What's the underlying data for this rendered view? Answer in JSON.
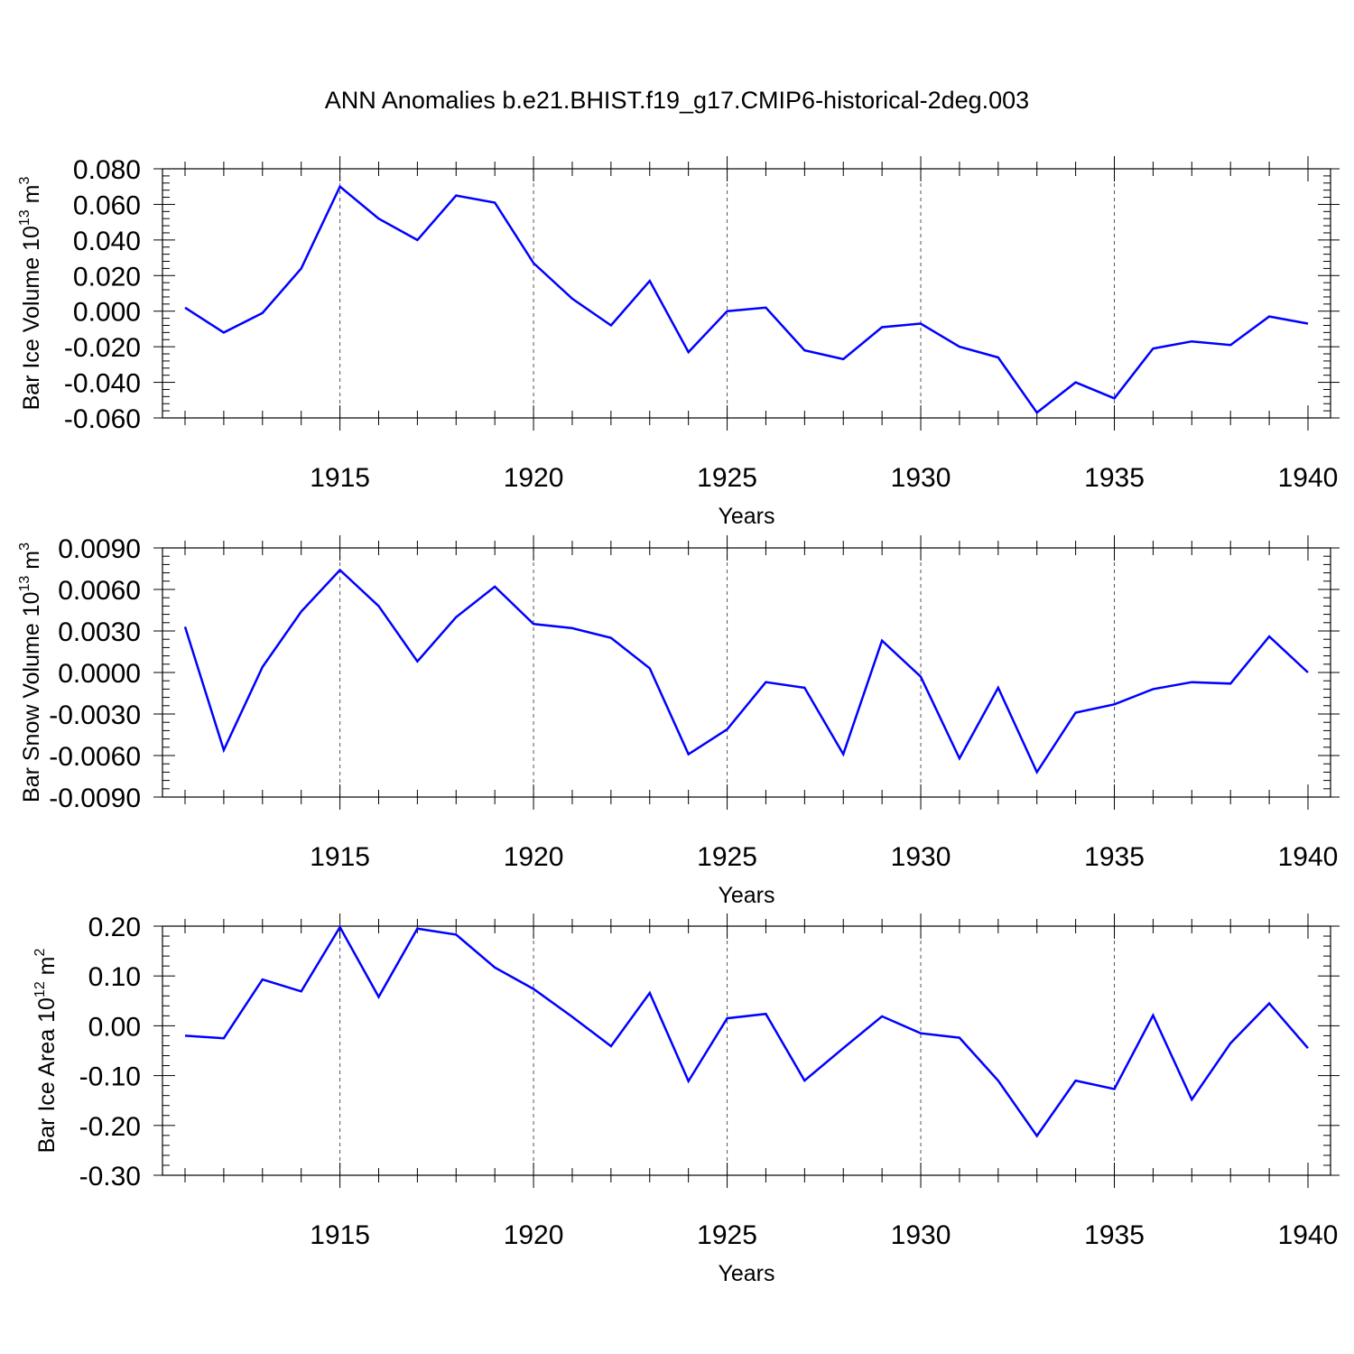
{
  "title": "ANN Anomalies b.e21.BHIST.f19_g17.CMIP6-historical-2deg.003",
  "colors": {
    "series": "#0000ff",
    "axis": "#000000",
    "grid": "#555555"
  },
  "chart_data": [
    {
      "type": "line",
      "ylabel": "Bar Ice Volume 10",
      "ylabel_exp": "13",
      "ylabel_unit": "m",
      "ylabel_unit_exp": "3",
      "xlabel": "Years",
      "xlim": [
        1911,
        1940
      ],
      "ylim": [
        -0.06,
        0.08
      ],
      "yticks": [
        -0.06,
        -0.04,
        -0.02,
        0.0,
        0.02,
        0.04,
        0.06,
        0.08
      ],
      "ytick_labels": [
        "-0.060",
        "-0.040",
        "-0.020",
        "0.000",
        "0.020",
        "0.040",
        "0.060",
        "0.080"
      ],
      "xticks": [
        1915,
        1920,
        1925,
        1930,
        1935,
        1940
      ],
      "xtick_labels": [
        "1915",
        "1920",
        "1925",
        "1930",
        "1935",
        "1940"
      ],
      "grid": "vertical dashed at major x ticks",
      "x": [
        1911,
        1912,
        1913,
        1914,
        1915,
        1916,
        1917,
        1918,
        1919,
        1920,
        1921,
        1922,
        1923,
        1924,
        1925,
        1926,
        1927,
        1928,
        1929,
        1930,
        1931,
        1932,
        1933,
        1934,
        1935,
        1936,
        1937,
        1938,
        1939,
        1940
      ],
      "y": [
        0.002,
        -0.012,
        -0.001,
        0.024,
        0.07,
        0.052,
        0.04,
        0.065,
        0.061,
        0.027,
        0.007,
        -0.008,
        0.017,
        -0.023,
        0.0,
        0.002,
        -0.022,
        -0.027,
        -0.009,
        -0.007,
        -0.02,
        -0.026,
        -0.057,
        -0.04,
        -0.049,
        -0.021,
        -0.017,
        -0.019,
        -0.003,
        -0.007
      ]
    },
    {
      "type": "line",
      "ylabel": "Bar Snow Volume 10",
      "ylabel_exp": "13",
      "ylabel_unit": "m",
      "ylabel_unit_exp": "3",
      "xlabel": "Years",
      "xlim": [
        1911,
        1940
      ],
      "ylim": [
        -0.009,
        0.009
      ],
      "yticks": [
        -0.009,
        -0.006,
        -0.003,
        0.0,
        0.003,
        0.006,
        0.009
      ],
      "ytick_labels": [
        "-0.0090",
        "-0.0060",
        "-0.0030",
        "0.0000",
        "0.0030",
        "0.0060",
        "0.0090"
      ],
      "xticks": [
        1915,
        1920,
        1925,
        1930,
        1935,
        1940
      ],
      "xtick_labels": [
        "1915",
        "1920",
        "1925",
        "1930",
        "1935",
        "1940"
      ],
      "grid": "vertical dashed at major x ticks",
      "x": [
        1911,
        1912,
        1913,
        1914,
        1915,
        1916,
        1917,
        1918,
        1919,
        1920,
        1921,
        1922,
        1923,
        1924,
        1925,
        1926,
        1927,
        1928,
        1929,
        1930,
        1931,
        1932,
        1933,
        1934,
        1935,
        1936,
        1937,
        1938,
        1939,
        1940
      ],
      "y": [
        0.0033,
        -0.0056,
        0.0004,
        0.0044,
        0.0074,
        0.0048,
        0.0008,
        0.004,
        0.0062,
        0.0035,
        0.0032,
        0.0025,
        0.0003,
        -0.0059,
        -0.0041,
        -0.0007,
        -0.0011,
        -0.0059,
        0.0023,
        -0.0003,
        -0.0062,
        -0.0011,
        -0.0072,
        -0.0029,
        -0.0023,
        -0.0012,
        -0.0007,
        -0.0008,
        0.0026,
        0.0
      ]
    },
    {
      "type": "line",
      "ylabel": "Bar Ice Area 10",
      "ylabel_exp": "12",
      "ylabel_unit": "m",
      "ylabel_unit_exp": "2",
      "xlabel": "Years",
      "xlim": [
        1911,
        1940
      ],
      "ylim": [
        -0.3,
        0.2
      ],
      "yticks": [
        -0.3,
        -0.2,
        -0.1,
        0.0,
        0.1,
        0.2
      ],
      "ytick_labels": [
        "-0.30",
        "-0.20",
        "-0.10",
        "0.00",
        "0.10",
        "0.20"
      ],
      "xticks": [
        1915,
        1920,
        1925,
        1930,
        1935,
        1940
      ],
      "xtick_labels": [
        "1915",
        "1920",
        "1925",
        "1930",
        "1935",
        "1940"
      ],
      "grid": "vertical dashed at major x ticks",
      "x": [
        1911,
        1912,
        1913,
        1914,
        1915,
        1916,
        1917,
        1918,
        1919,
        1920,
        1921,
        1922,
        1923,
        1924,
        1925,
        1926,
        1927,
        1928,
        1929,
        1930,
        1931,
        1932,
        1933,
        1934,
        1935,
        1936,
        1937,
        1938,
        1939,
        1940
      ],
      "y": [
        -0.02,
        -0.025,
        0.093,
        0.069,
        0.198,
        0.058,
        0.195,
        0.183,
        0.117,
        0.074,
        0.018,
        -0.041,
        0.066,
        -0.111,
        0.015,
        0.024,
        -0.11,
        -0.045,
        0.019,
        -0.015,
        -0.024,
        -0.11,
        -0.221,
        -0.11,
        -0.127,
        0.021,
        -0.148,
        -0.035,
        0.045,
        -0.045
      ]
    }
  ]
}
